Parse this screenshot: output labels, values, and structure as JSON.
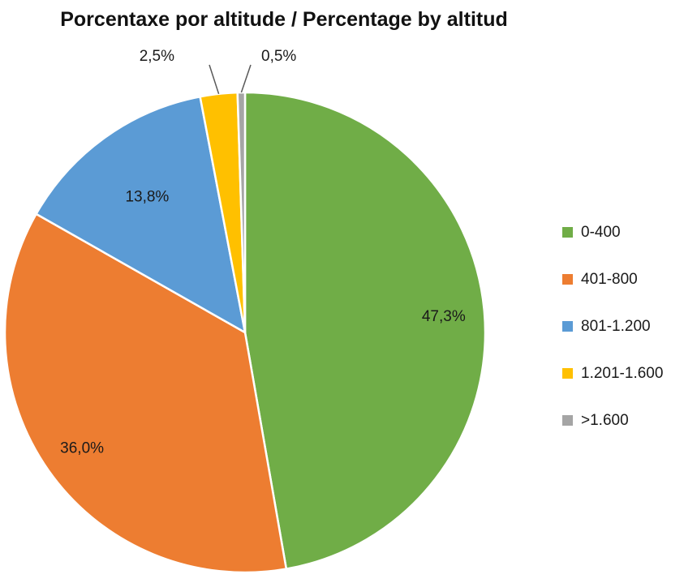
{
  "chart_data": {
    "type": "pie",
    "title": "Porcentaxe por altitude / Percentage by altitud",
    "categories": [
      "0-400",
      "401-800",
      "801-1.200",
      "1.201-1.600",
      ">1.600"
    ],
    "values": [
      47.3,
      36.0,
      13.8,
      2.5,
      0.5
    ],
    "data_labels": [
      "47,3%",
      "36,0%",
      "13,8%",
      "2,5%",
      "0,5%"
    ],
    "colors": [
      "#70ad47",
      "#ed7d31",
      "#5b9bd5",
      "#ffc000",
      "#a5a5a5"
    ],
    "start_angle_deg": 0,
    "direction": "clockwise",
    "legend_position": "right"
  }
}
